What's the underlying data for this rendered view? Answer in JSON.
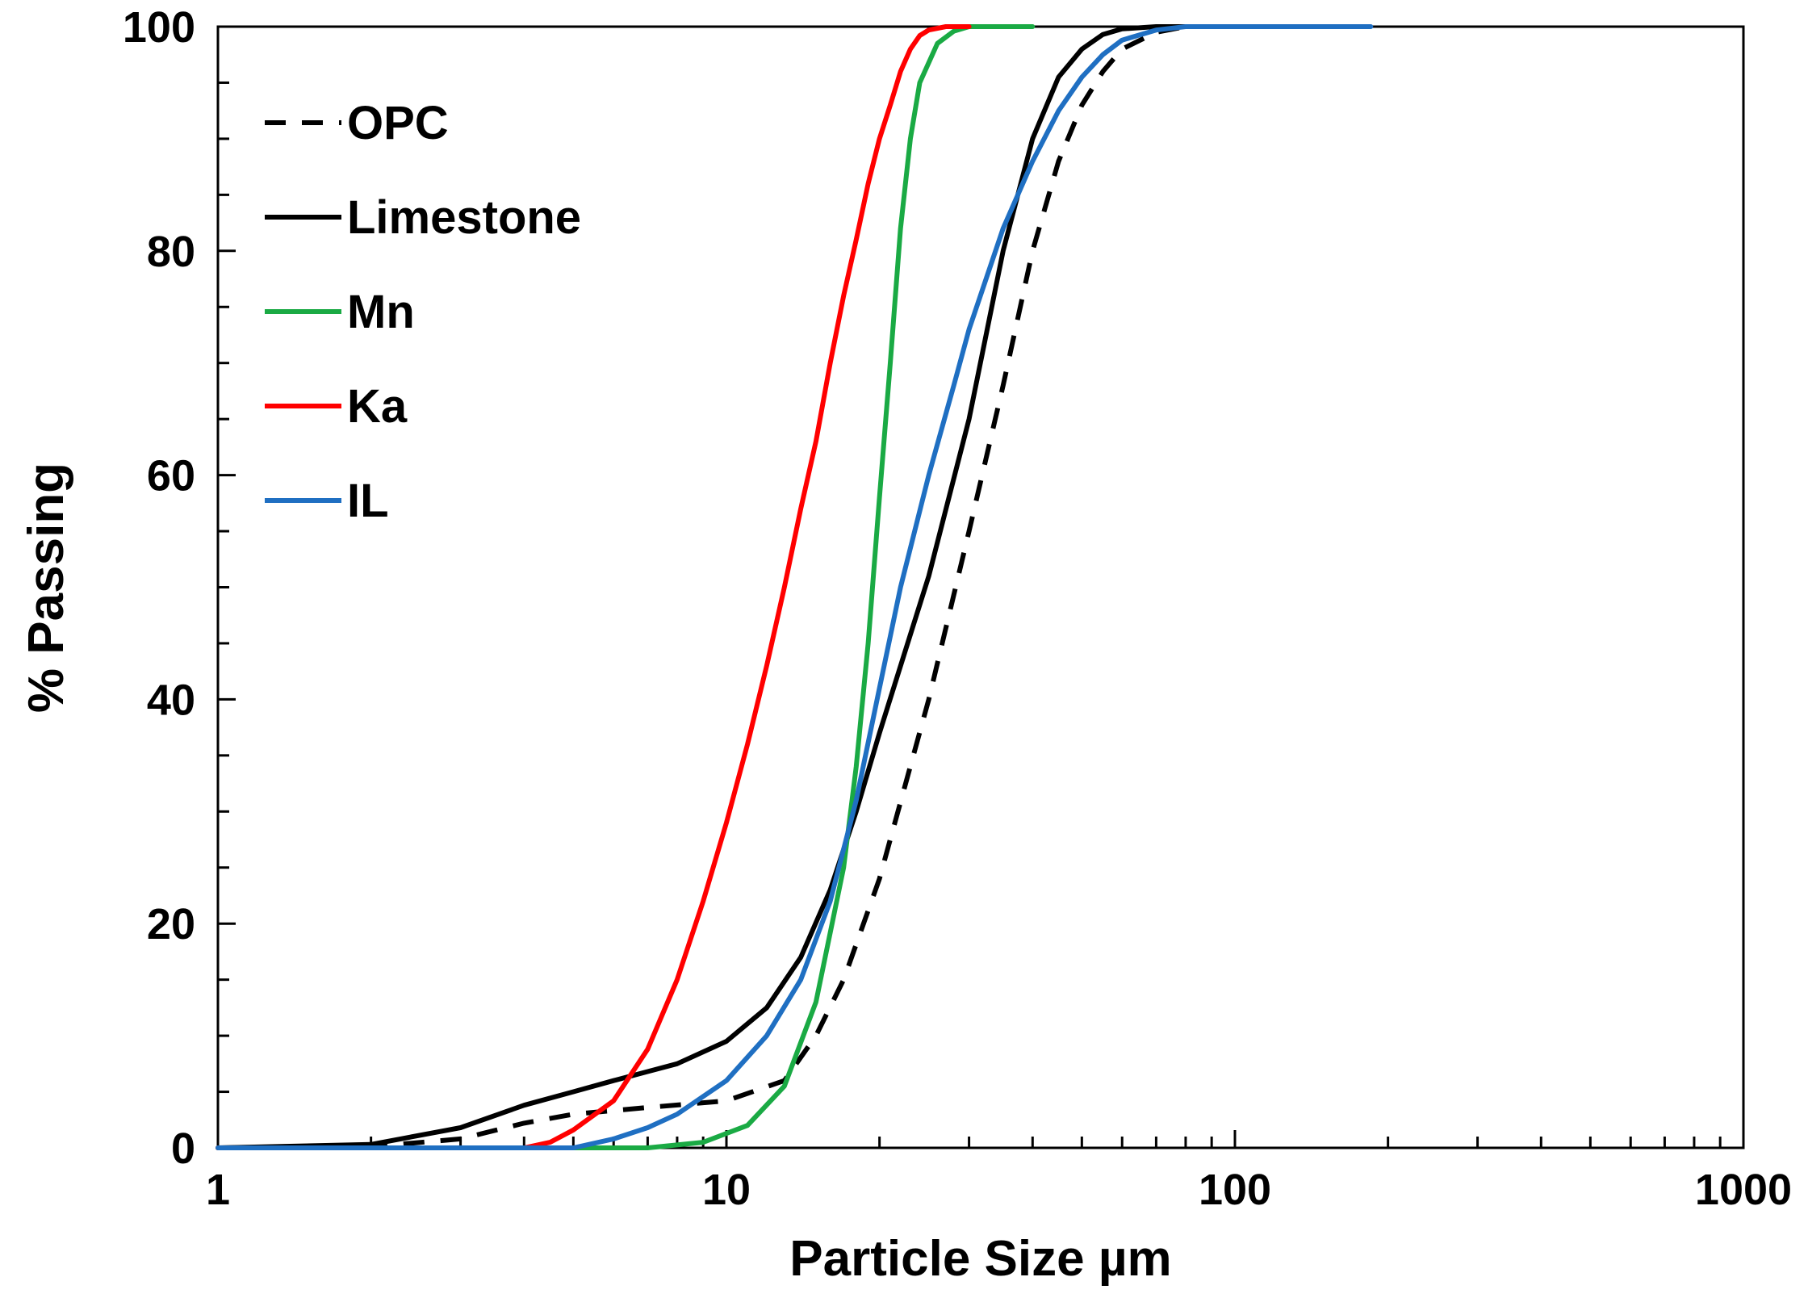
{
  "chart_data": {
    "type": "line",
    "title": "",
    "xlabel": "Particle Size µm",
    "ylabel": "% Passing",
    "xscale": "log",
    "xlim": [
      1,
      1000
    ],
    "ylim": [
      0,
      100
    ],
    "xticks": [
      "1",
      "10",
      "100",
      "1000"
    ],
    "yticks": [
      "0",
      "20",
      "40",
      "60",
      "80",
      "100"
    ],
    "grid": false,
    "legend_position": "top-left",
    "series": [
      {
        "name": "OPC",
        "color": "#000000",
        "dash": "dashed",
        "x": [
          1,
          2,
          3,
          4,
          5,
          7,
          10,
          13,
          15,
          17,
          20,
          25,
          30,
          35,
          40,
          45,
          50,
          55,
          60,
          70,
          80,
          100
        ],
        "y": [
          0,
          0.1,
          0.8,
          2.2,
          3.0,
          3.6,
          4.2,
          6.0,
          10.0,
          15.0,
          24.0,
          40.0,
          55.0,
          68.0,
          80.0,
          88.0,
          93.0,
          96.0,
          98.0,
          99.5,
          100,
          100
        ]
      },
      {
        "name": "Limestone",
        "color": "#000000",
        "dash": "solid",
        "x": [
          1,
          2,
          3,
          4,
          5,
          6,
          7,
          8,
          10,
          12,
          14,
          16,
          18,
          20,
          25,
          30,
          35,
          40,
          45,
          50,
          55,
          60,
          70,
          80
        ],
        "y": [
          0,
          0.3,
          1.8,
          3.8,
          5.0,
          6.0,
          6.8,
          7.5,
          9.5,
          12.5,
          17.0,
          23.0,
          30.0,
          37.0,
          51.0,
          65.0,
          80.0,
          90.0,
          95.5,
          98.0,
          99.3,
          99.8,
          100,
          100
        ]
      },
      {
        "name": "Mn",
        "color": "#1aaa44",
        "dash": "solid",
        "x": [
          1,
          7,
          9,
          11,
          13,
          15,
          17,
          18,
          19,
          20,
          21,
          22,
          23,
          24,
          26,
          28,
          30,
          35,
          40
        ],
        "y": [
          0,
          0,
          0.5,
          2.0,
          5.5,
          13.0,
          25.0,
          34.0,
          45.0,
          58.0,
          70.0,
          82.0,
          90.0,
          95.0,
          98.5,
          99.6,
          100,
          100,
          100
        ]
      },
      {
        "name": "Ka",
        "color": "#ff0000",
        "dash": "solid",
        "x": [
          1,
          4,
          4.5,
          5,
          6,
          7,
          8,
          9,
          10,
          11,
          12,
          13,
          14,
          15,
          16,
          17,
          18,
          19,
          20,
          21,
          22,
          23,
          24,
          25,
          27,
          30
        ],
        "y": [
          0,
          0,
          0.5,
          1.6,
          4.2,
          8.8,
          15.0,
          22.0,
          29.0,
          36.0,
          43.0,
          50.0,
          57.0,
          63.0,
          70.0,
          76.0,
          81.0,
          86.0,
          90.0,
          93.0,
          96.0,
          98.0,
          99.2,
          99.7,
          100,
          100
        ]
      },
      {
        "name": "IL",
        "color": "#1f6fc2",
        "dash": "solid",
        "x": [
          1,
          5,
          6,
          7,
          8,
          10,
          12,
          14,
          16,
          18,
          20,
          22,
          25,
          28,
          30,
          35,
          40,
          45,
          50,
          55,
          60,
          70,
          80,
          100,
          150,
          185
        ],
        "y": [
          0,
          0,
          0.8,
          1.8,
          3.0,
          6.0,
          10.0,
          15.0,
          22.0,
          31.0,
          41.0,
          50.0,
          60.0,
          68.0,
          73.0,
          82.0,
          88.0,
          92.5,
          95.5,
          97.5,
          98.8,
          99.7,
          100,
          100,
          100,
          100
        ]
      }
    ]
  }
}
